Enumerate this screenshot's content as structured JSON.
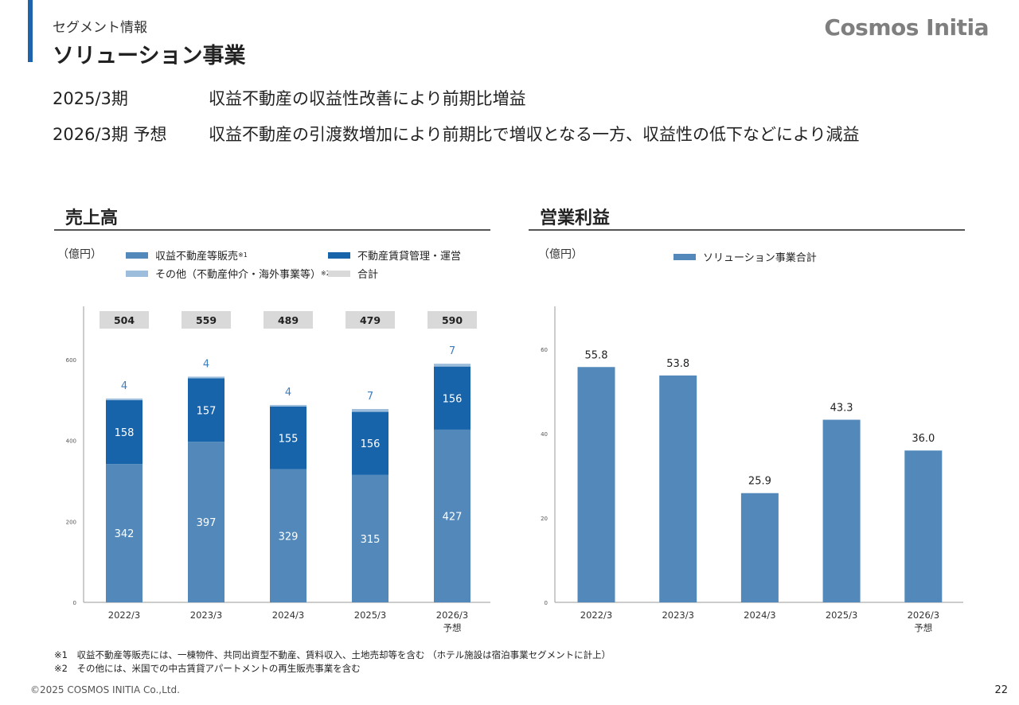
{
  "header": {
    "segment_label": "セグメント情報",
    "title": "ソリューション事業",
    "logo": "Cosmos Initia"
  },
  "summary": [
    {
      "period": "2025/3期",
      "text": "収益不動産の収益性改善により前期比増益"
    },
    {
      "period": "2026/3期 予想",
      "text": "収益不動産の引渡数増加により前期比で増収となる一方、収益性の低下などにより減益"
    }
  ],
  "charts": {
    "sales": {
      "title": "売上高",
      "unit": "（億円）",
      "legend": [
        {
          "label": "収益不動産等販売",
          "sup": "※1",
          "color": "#5289ba"
        },
        {
          "label": "不動産賃貸管理・運営",
          "sup": "",
          "color": "#1864ab"
        },
        {
          "label": "その他（不動産仲介・海外事業等）",
          "sup": "※2",
          "color": "#9dbddc"
        },
        {
          "label": "合計",
          "sup": "",
          "color": "#d9d9d9"
        }
      ]
    },
    "profit": {
      "title": "営業利益",
      "unit": "（億円）",
      "legend": [
        {
          "label": "ソリューション事業合計",
          "sup": "",
          "color": "#5289ba"
        }
      ]
    }
  },
  "chart_data": [
    {
      "type": "bar",
      "stacked": true,
      "title": "売上高",
      "ylabel": "（億円）",
      "categories": [
        "2022/3",
        "2023/3",
        "2024/3",
        "2025/3",
        "2026/3\n予想"
      ],
      "ylim": [
        0,
        700
      ],
      "yticks": [
        0,
        200,
        400,
        600
      ],
      "series": [
        {
          "name": "収益不動産等販売",
          "values": [
            342,
            397,
            329,
            315,
            427
          ],
          "color": "#5289ba",
          "label_color": "#ffffff"
        },
        {
          "name": "不動産賃貸管理・運営",
          "values": [
            158,
            157,
            155,
            156,
            156
          ],
          "color": "#1864ab",
          "label_color": "#ffffff"
        },
        {
          "name": "その他（不動産仲介・海外事業等）",
          "values": [
            4,
            4,
            4,
            7,
            7
          ],
          "color": "#9dbddc",
          "label_color": "#3f7fbf"
        }
      ],
      "totals": [
        504,
        559,
        489,
        479,
        590
      ],
      "grid": false
    },
    {
      "type": "bar",
      "title": "営業利益",
      "ylabel": "（億円）",
      "categories": [
        "2022/3",
        "2023/3",
        "2024/3",
        "2025/3",
        "2026/3\n予想"
      ],
      "ylim": [
        0,
        70
      ],
      "yticks": [
        0,
        20,
        40,
        60
      ],
      "series": [
        {
          "name": "ソリューション事業合計",
          "values": [
            55.8,
            53.8,
            25.9,
            43.3,
            36.0
          ],
          "color": "#5289ba"
        }
      ],
      "value_labels": [
        "55.8",
        "53.8",
        "25.9",
        "43.3",
        "36.0"
      ],
      "grid": false
    }
  ],
  "footnotes": [
    "※1　収益不動産等販売には、一棟物件、共同出資型不動産、賃料収入、土地売却等を含む （ホテル施設は宿泊事業セグメントに計上）",
    "※2　その他には、米国での中古賃貸アパートメントの再生販売事業を含む"
  ],
  "footer": {
    "copyright": "©2025 COSMOS INITIA Co.,Ltd.",
    "page_number": "22"
  }
}
